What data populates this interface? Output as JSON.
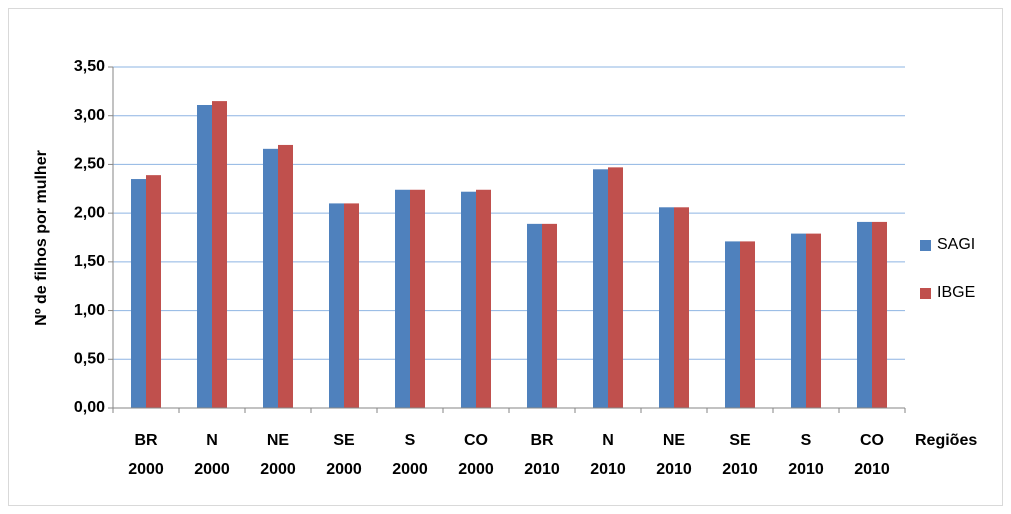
{
  "chart_data": {
    "type": "bar",
    "y_label": "Nº de filhos por mulher",
    "x_label": "Regiões",
    "categories": [
      [
        "BR",
        "2000"
      ],
      [
        "N",
        "2000"
      ],
      [
        "NE",
        "2000"
      ],
      [
        "SE",
        "2000"
      ],
      [
        "S",
        "2000"
      ],
      [
        "CO",
        "2000"
      ],
      [
        "BR",
        "2010"
      ],
      [
        "N",
        "2010"
      ],
      [
        "NE",
        "2010"
      ],
      [
        "SE",
        "2010"
      ],
      [
        "S",
        "2010"
      ],
      [
        "CO",
        "2010"
      ]
    ],
    "series": [
      {
        "name": "SAGI",
        "color": "#4f81bd",
        "values": [
          2.35,
          3.11,
          2.66,
          2.1,
          2.24,
          2.22,
          1.89,
          2.45,
          2.06,
          1.71,
          1.79,
          1.91
        ]
      },
      {
        "name": "IBGE",
        "color": "#c0504d",
        "values": [
          2.39,
          3.15,
          2.7,
          2.1,
          2.24,
          2.24,
          1.89,
          2.47,
          2.06,
          1.71,
          1.79,
          1.91
        ]
      }
    ],
    "ylim": [
      0,
      3.5
    ],
    "yticks": [
      {
        "value": 0,
        "label": "0,00"
      },
      {
        "value": 0.5,
        "label": "0,50"
      },
      {
        "value": 1,
        "label": "1,00"
      },
      {
        "value": 1.5,
        "label": "1,50"
      },
      {
        "value": 2,
        "label": "2,00"
      },
      {
        "value": 2.5,
        "label": "2,50"
      },
      {
        "value": 3,
        "label": "3,00"
      },
      {
        "value": 3.5,
        "label": "3,50"
      }
    ],
    "grid": true,
    "legend": "right"
  }
}
